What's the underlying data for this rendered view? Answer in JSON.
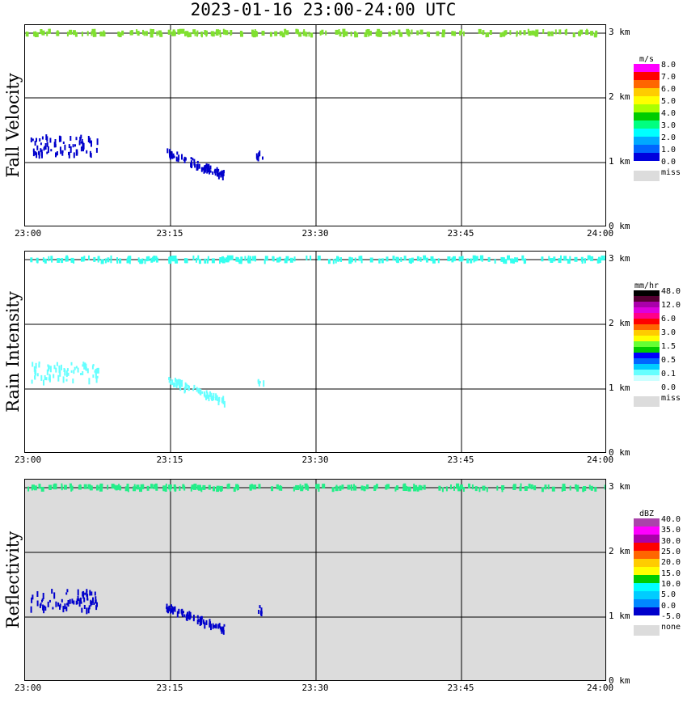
{
  "title": "2023-01-16  23:00-24:00 UTC",
  "x_ticks": [
    "23:00",
    "23:15",
    "23:30",
    "23:45",
    "24:00"
  ],
  "y_ticks": [
    "0 km",
    "1 km",
    "2 km",
    "3 km"
  ],
  "panels": [
    {
      "label": "Fall Velocity",
      "unit": "m/s",
      "background": "#ffffff",
      "legend_colors": [
        "#ff00ff",
        "#ff0000",
        "#ff6600",
        "#ffcc00",
        "#ffff00",
        "#aaff00",
        "#00cc00",
        "#00ff80",
        "#00ffff",
        "#00aaff",
        "#0066ff",
        "#0000dd"
      ],
      "legend_labels": [
        "8.0",
        "7.0",
        "6.0",
        "5.0",
        "4.0",
        "3.0",
        "2.0",
        "1.0",
        "0.0"
      ],
      "miss_label": "miss",
      "colors": {
        "top": "#80e030",
        "low": "#0000cc"
      }
    },
    {
      "label": "Rain Intensity",
      "unit": "mm/hr",
      "background": "#ffffff",
      "legend_colors": [
        "#000000",
        "#550033",
        "#aa00aa",
        "#dd00dd",
        "#ff0088",
        "#ff0000",
        "#ff6600",
        "#ffcc00",
        "#ffff00",
        "#66ff33",
        "#00cc00",
        "#0000ff",
        "#0066ff",
        "#00ccff",
        "#66ffff",
        "#ccffff",
        "#ffffff"
      ],
      "legend_labels": [
        "48.0",
        "12.0",
        "6.0",
        "3.0",
        "1.5",
        "0.5",
        "0.1",
        "0.0"
      ],
      "miss_label": "miss",
      "colors": {
        "top": "#33ffee",
        "low": "#66ffff"
      }
    },
    {
      "label": "Reflectivity",
      "unit": "dBZ",
      "background": "#dcdcdc",
      "legend_colors": [
        "#aa44aa",
        "#ff00ff",
        "#aa00aa",
        "#ff0000",
        "#ff6600",
        "#ffcc00",
        "#ffff00",
        "#00cc00",
        "#00ffff",
        "#00ccff",
        "#0088ff",
        "#0000cc"
      ],
      "legend_labels": [
        "40.0",
        "35.0",
        "30.0",
        "25.0",
        "20.0",
        "15.0",
        "10.0",
        "5.0",
        "0.0",
        "-5.0"
      ],
      "miss_label": "none",
      "colors": {
        "top": "#22ee88",
        "low": "#0000cc"
      }
    }
  ],
  "chart_data": {
    "type": "heatmap",
    "x_range_minutes": [
      0,
      60
    ],
    "y_range_km": [
      0,
      3.2
    ],
    "echo_features": [
      {
        "desc": "thin layer near 3 km",
        "x_minutes": [
          0,
          60
        ],
        "y_km": [
          2.97,
          3.03
        ]
      },
      {
        "desc": "cluster",
        "x_minutes": [
          0.5,
          7.5
        ],
        "y_km": [
          1.1,
          1.4
        ]
      },
      {
        "desc": "cluster",
        "x_minutes": [
          14.5,
          20.5
        ],
        "y_km": [
          0.85,
          1.2
        ]
      },
      {
        "desc": "small echo",
        "x_minutes": [
          23.8,
          24.6
        ],
        "y_km": [
          1.05,
          1.15
        ]
      }
    ]
  }
}
